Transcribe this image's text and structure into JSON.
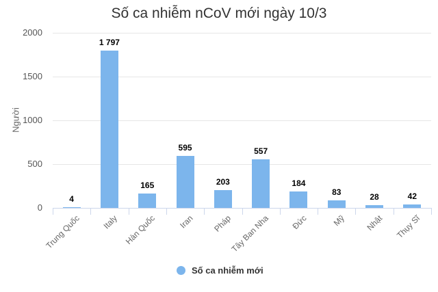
{
  "chart_data": {
    "type": "bar",
    "title": "Số ca nhiễm nCoV mới ngày 10/3",
    "xlabel": "",
    "ylabel": "Người",
    "ylim": [
      0,
      2000
    ],
    "yticks": [
      "0",
      "500",
      "1000",
      "1500",
      "2000"
    ],
    "grid": true,
    "categories": [
      "Trung Quốc",
      "Italy",
      "Hàn Quốc",
      "Iran",
      "Pháp",
      "Tây Ban Nha",
      "Đức",
      "Mỹ",
      "Nhật",
      "Thụy Sĩ"
    ],
    "series": [
      {
        "name": "Số ca nhiễm mới",
        "color": "#7cb5ec",
        "values": [
          4,
          1797,
          165,
          595,
          203,
          557,
          184,
          83,
          28,
          42
        ],
        "labels": [
          "4",
          "1 797",
          "165",
          "595",
          "203",
          "557",
          "184",
          "83",
          "28",
          "42"
        ]
      }
    ],
    "legend_position": "bottom"
  }
}
